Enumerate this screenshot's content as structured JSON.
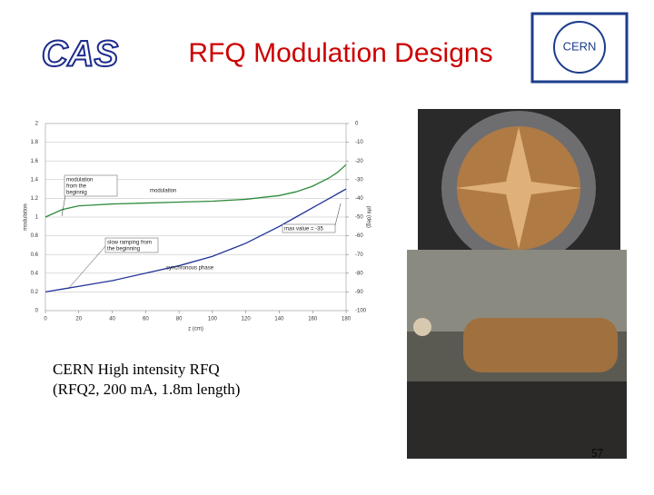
{
  "header": {
    "logo_left": "CAS",
    "title": "RFQ Modulation Designs",
    "logo_right": "CERN"
  },
  "chart_data": {
    "type": "line",
    "x": [
      0,
      10,
      20,
      30,
      40,
      60,
      80,
      100,
      120,
      140,
      150,
      160,
      170,
      175,
      180
    ],
    "series": [
      {
        "name": "modulation",
        "color": "#2e8b3a",
        "values": [
          1.0,
          1.08,
          1.12,
          1.13,
          1.14,
          1.15,
          1.16,
          1.17,
          1.19,
          1.23,
          1.27,
          1.33,
          1.42,
          1.48,
          1.56
        ]
      },
      {
        "name": "synchronous phase",
        "color": "#22339a",
        "axis": "y2",
        "values": [
          -90,
          -88.5,
          -87,
          -85.5,
          -84,
          -80,
          -76,
          -71,
          -64,
          -55,
          -50,
          -45,
          -40,
          -37.5,
          -35
        ]
      }
    ],
    "xlabel": "z (cm)",
    "ylabel": "modulation",
    "y2label": "phi (deg)",
    "xlim": [
      0,
      180
    ],
    "xticks": [
      0,
      20,
      40,
      60,
      80,
      100,
      120,
      140,
      160,
      180
    ],
    "ylim": [
      0,
      2
    ],
    "yticks": [
      0,
      0.2,
      0.4,
      0.6,
      0.8,
      1,
      1.2,
      1.4,
      1.6,
      1.8,
      2
    ],
    "y2lim": [
      -100,
      0
    ],
    "y2ticks": [
      -100,
      -90,
      -80,
      -70,
      -60,
      -50,
      -40,
      -30,
      -20,
      -10,
      0
    ],
    "grid": true,
    "annotations": [
      {
        "lines": [
          "modulation",
          "from the",
          "beginnig"
        ]
      },
      {
        "lines": [
          "modulation"
        ]
      },
      {
        "lines": [
          "slow ramping from",
          "the beginning"
        ]
      },
      {
        "lines": [
          "synchronous phase"
        ]
      },
      {
        "lines": [
          "max value = -35"
        ]
      }
    ]
  },
  "caption": [
    "CERN High intensity RFQ",
    "(RFQ2, 200 mA, 1.8m length)"
  ],
  "page_number": "57"
}
